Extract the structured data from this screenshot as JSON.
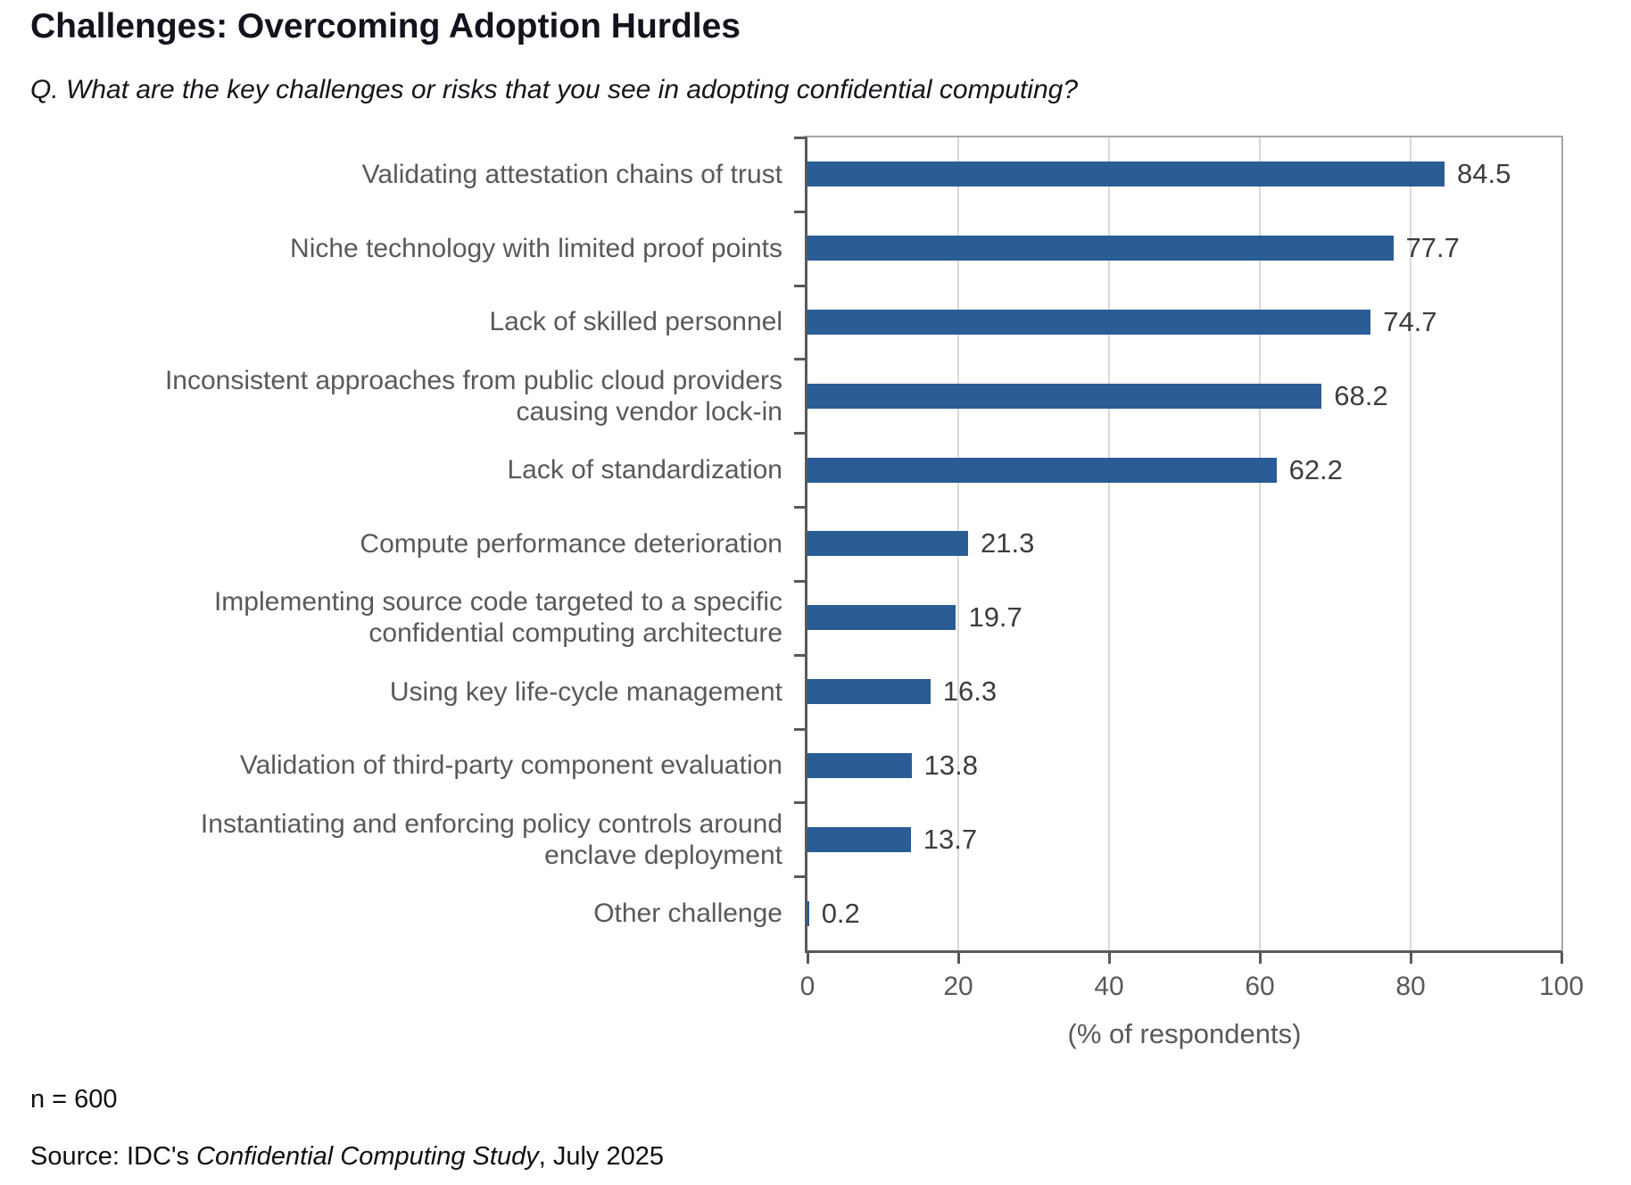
{
  "header": {
    "title": "Challenges: Overcoming Adoption Hurdles",
    "question": "Q. What are the key challenges or risks that you see in adopting confidential computing?"
  },
  "chart_data": {
    "type": "bar",
    "orientation": "horizontal",
    "title": "Challenges: Overcoming Adoption Hurdles",
    "categories": [
      "Validating attestation chains of trust",
      "Niche technology with limited proof points",
      "Lack of skilled personnel",
      "Inconsistent approaches from public cloud providers\ncausing vendor lock-in",
      "Lack of standardization",
      "Compute performance deterioration",
      "Implementing source code targeted to a specific\nconfidential computing architecture",
      "Using key life-cycle management",
      "Validation of third-party component evaluation",
      "Instantiating and enforcing policy controls around\nenclave deployment",
      "Other challenge"
    ],
    "values": [
      84.5,
      77.7,
      74.7,
      68.2,
      62.2,
      21.3,
      19.7,
      16.3,
      13.8,
      13.7,
      0.2
    ],
    "xlabel": "(% of respondents)",
    "xlim": [
      0,
      100
    ],
    "xticks": [
      0,
      20,
      40,
      60,
      80,
      100
    ],
    "grid": "vertical",
    "legend": "none"
  },
  "footer": {
    "sample_size": "n = 600",
    "source_prefix": "Source: IDC's ",
    "source_study": "Confidential Computing Study",
    "source_suffix": ", July 2025"
  },
  "colors": {
    "bar": "#2A5C95",
    "axis": "#595959",
    "gridline": "#D9D9D9",
    "plot_border": "#A6A6A6",
    "category_label": "#595959",
    "value_label": "#3d3d3d"
  }
}
